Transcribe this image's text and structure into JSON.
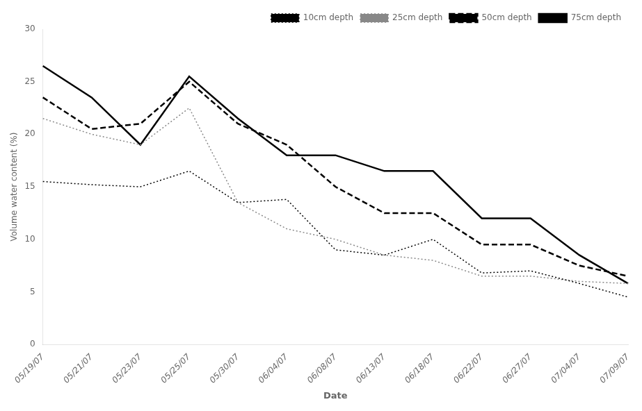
{
  "chart_data": {
    "type": "line",
    "categories": [
      "05/19/07",
      "05/21/07",
      "05/23/07",
      "05/25/07",
      "05/30/07",
      "06/04/07",
      "06/08/07",
      "06/13/07",
      "06/18/07",
      "06/22/07",
      "06/27/07",
      "07/04/07",
      "07/09/07"
    ],
    "series": [
      {
        "name": "10cm depth",
        "color": "#000000",
        "line_style": "dotted",
        "marker": "none",
        "values": [
          15.5,
          15.2,
          15.0,
          16.5,
          13.5,
          13.8,
          9.0,
          8.5,
          10.0,
          6.8,
          7.0,
          5.8,
          4.5
        ]
      },
      {
        "name": "25cm depth",
        "color": "#888888",
        "line_style": "dotted",
        "marker": "none",
        "values": [
          21.5,
          20.0,
          19.0,
          22.5,
          13.5,
          11.0,
          10.0,
          8.5,
          8.0,
          6.5,
          6.5,
          6.0,
          5.8
        ]
      },
      {
        "name": "50cm depth",
        "color": "#000000",
        "line_style": "dashed",
        "marker": "none",
        "values": [
          23.5,
          20.5,
          21.0,
          25.0,
          21.0,
          19.0,
          15.0,
          12.5,
          12.5,
          9.5,
          9.5,
          7.5,
          6.5
        ]
      },
      {
        "name": "75cm depth",
        "color": "#000000",
        "line_style": "solid",
        "marker": "none",
        "values": [
          26.5,
          23.5,
          19.0,
          25.5,
          21.5,
          18.0,
          18.0,
          16.5,
          16.5,
          12.0,
          12.0,
          8.5,
          5.8
        ]
      }
    ],
    "x_label": "Date",
    "y_label": "Volume water content (%)",
    "ylim": [
      0,
      30
    ],
    "yticks": [
      0,
      5,
      10,
      15,
      20,
      25,
      30
    ],
    "grid": false,
    "legend": "upper right"
  }
}
